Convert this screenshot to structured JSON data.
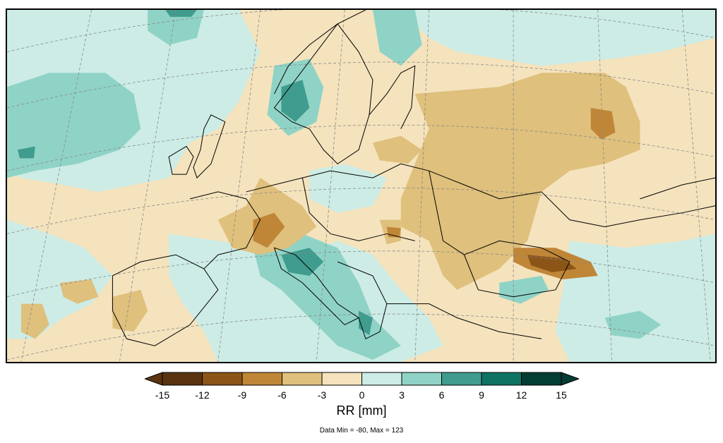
{
  "variable_label": "RR [mm]",
  "data_range_note": "Data Min = -80, Max = 123",
  "colorbar": {
    "ticks": [
      "-15",
      "-12",
      "-9",
      "-6",
      "-3",
      "0",
      "3",
      "6",
      "9",
      "12",
      "15"
    ],
    "colors": [
      "#5a3410",
      "#8b5518",
      "#c08637",
      "#dfc07c",
      "#f4e3bd",
      "#cdece6",
      "#8fd3c6",
      "#3f9c8e",
      "#0e7362",
      "#033d33"
    ],
    "under_color": "#5a3410",
    "over_color": "#033d33"
  },
  "map": {
    "background_color": "#f4e3bd",
    "coast_color": "#000000",
    "graticule_color": "#888888"
  }
}
